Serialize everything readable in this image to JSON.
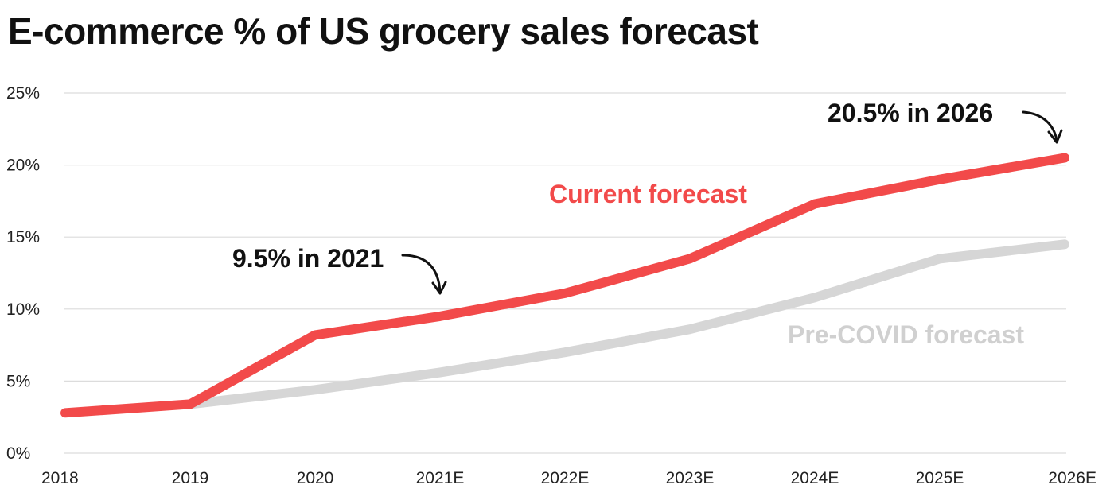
{
  "chart_data": {
    "type": "line",
    "title": "E-commerce % of US grocery sales forecast",
    "categories": [
      "2018",
      "2019",
      "2020",
      "2021E",
      "2022E",
      "2023E",
      "2024E",
      "2025E",
      "2026E"
    ],
    "y_ticks": [
      "0%",
      "5%",
      "10%",
      "15%",
      "20%",
      "25%"
    ],
    "y_tick_values": [
      0,
      5,
      10,
      15,
      20,
      25
    ],
    "ylim": [
      0,
      25
    ],
    "grid": "horizontal",
    "series": [
      {
        "name": "Pre-COVID forecast",
        "color": "#d6d6d6",
        "label_color": "#d0d0d0",
        "values": [
          null,
          3.4,
          4.4,
          5.6,
          7.0,
          8.6,
          10.8,
          13.5,
          14.5
        ]
      },
      {
        "name": "Current forecast",
        "color": "#f24a4a",
        "label_color": "#f24a4a",
        "values": [
          2.8,
          3.4,
          8.2,
          9.5,
          11.1,
          13.5,
          17.3,
          19.0,
          20.5
        ]
      }
    ],
    "annotations": [
      {
        "text": "9.5% in 2021",
        "category": "2021E",
        "value": 9.5
      },
      {
        "text": "20.5% in 2026",
        "category": "2026E",
        "value": 20.5
      }
    ]
  }
}
